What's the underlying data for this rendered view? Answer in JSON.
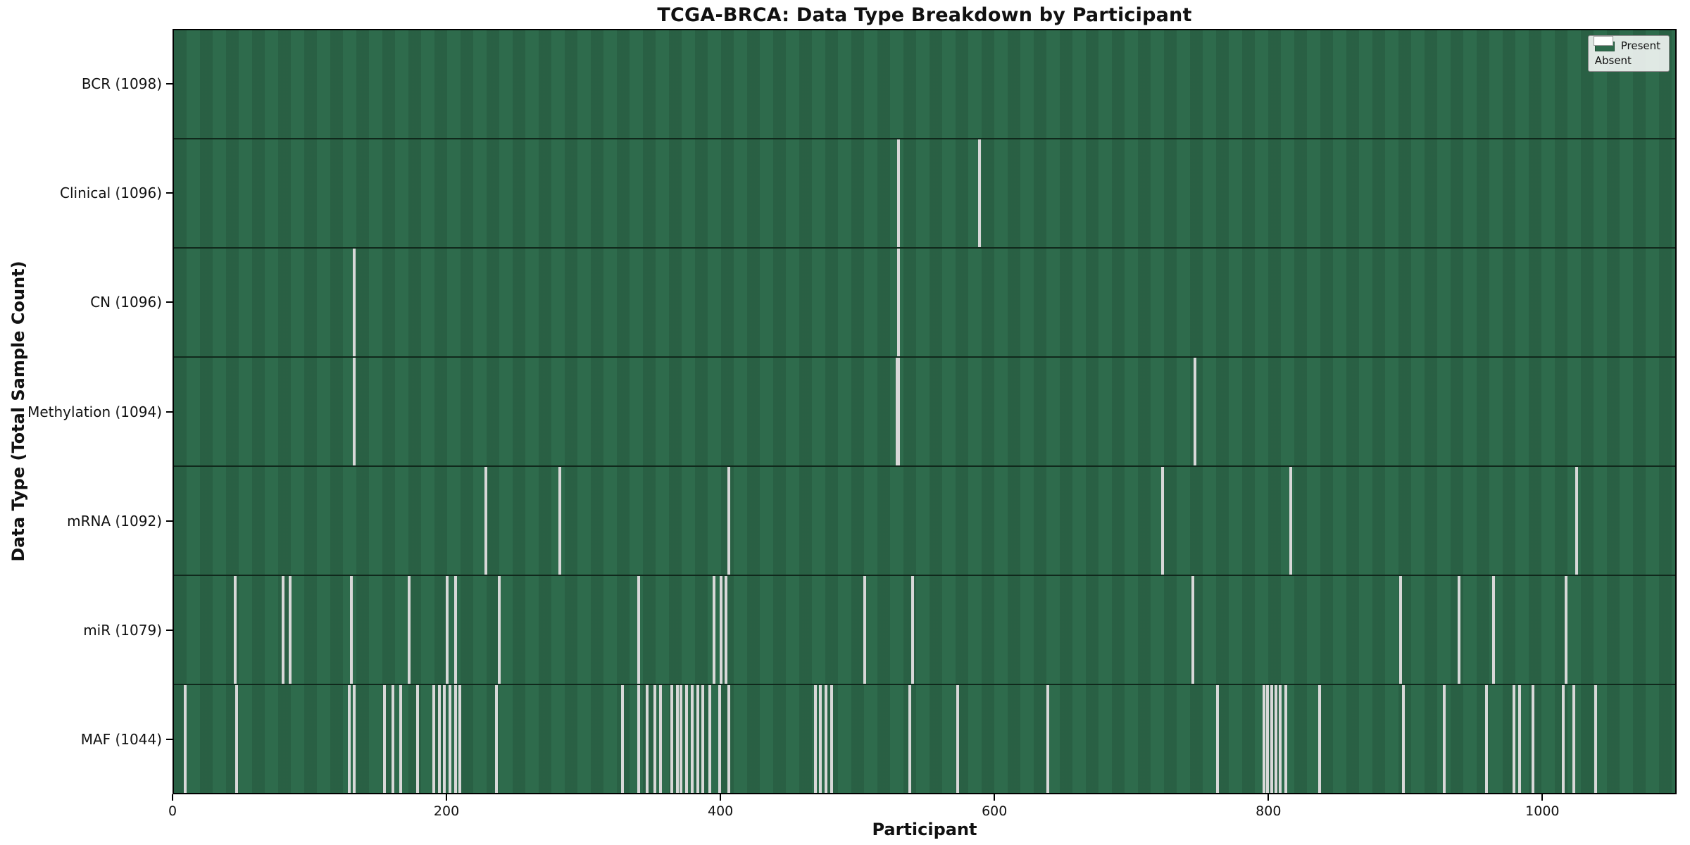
{
  "chart_data": {
    "type": "heatmap",
    "title": "TCGA-BRCA: Data Type Breakdown by Participant",
    "xlabel": "Participant",
    "ylabel": "Data Type (Total Sample Count)",
    "x_min": 0,
    "x_max": 1098,
    "xticks": [
      0,
      200,
      400,
      600,
      800,
      1000
    ],
    "grid": false,
    "legend": {
      "position": "upper right",
      "items": [
        {
          "label": "Present",
          "color": "#2e6b4c"
        },
        {
          "label": "Absent",
          "color": "#ffffff"
        }
      ]
    },
    "colors": {
      "present": "#2e6b4c",
      "absent_line": "#d8d8d8",
      "row_divider": "#10291c",
      "plot_border": "#000000"
    },
    "rows": [
      {
        "id": "bcr",
        "label": "BCR (1098)",
        "total": 1098,
        "absent": []
      },
      {
        "id": "clinical",
        "label": "Clinical (1096)",
        "total": 1096,
        "absent": [
          530,
          589
        ]
      },
      {
        "id": "cn",
        "label": "CN (1096)",
        "total": 1096,
        "absent": [
          132,
          530
        ]
      },
      {
        "id": "methylation",
        "label": "Methylation (1094)",
        "total": 1094,
        "absent": [
          132,
          529,
          530,
          747
        ]
      },
      {
        "id": "mrna",
        "label": "mRNA (1092)",
        "total": 1092,
        "absent": [
          228,
          282,
          406,
          723,
          817,
          1026
        ]
      },
      {
        "id": "mir",
        "label": "miR (1079)",
        "total": 1079,
        "absent": [
          45,
          80,
          85,
          130,
          172,
          200,
          206,
          238,
          340,
          395,
          400,
          404,
          505,
          540,
          745,
          897,
          940,
          965,
          1018
        ]
      },
      {
        "id": "maf",
        "label": "MAF (1044)",
        "total": 1044,
        "absent": [
          8,
          46,
          128,
          132,
          154,
          160,
          166,
          178,
          190,
          194,
          198,
          202,
          206,
          209,
          236,
          328,
          340,
          346,
          352,
          356,
          364,
          368,
          371,
          375,
          379,
          383,
          387,
          392,
          399,
          406,
          469,
          473,
          477,
          481,
          538,
          573,
          639,
          763,
          797,
          800,
          803,
          806,
          809,
          813,
          838,
          899,
          929,
          960,
          980,
          984,
          994,
          1016,
          1024,
          1040
        ]
      }
    ]
  }
}
